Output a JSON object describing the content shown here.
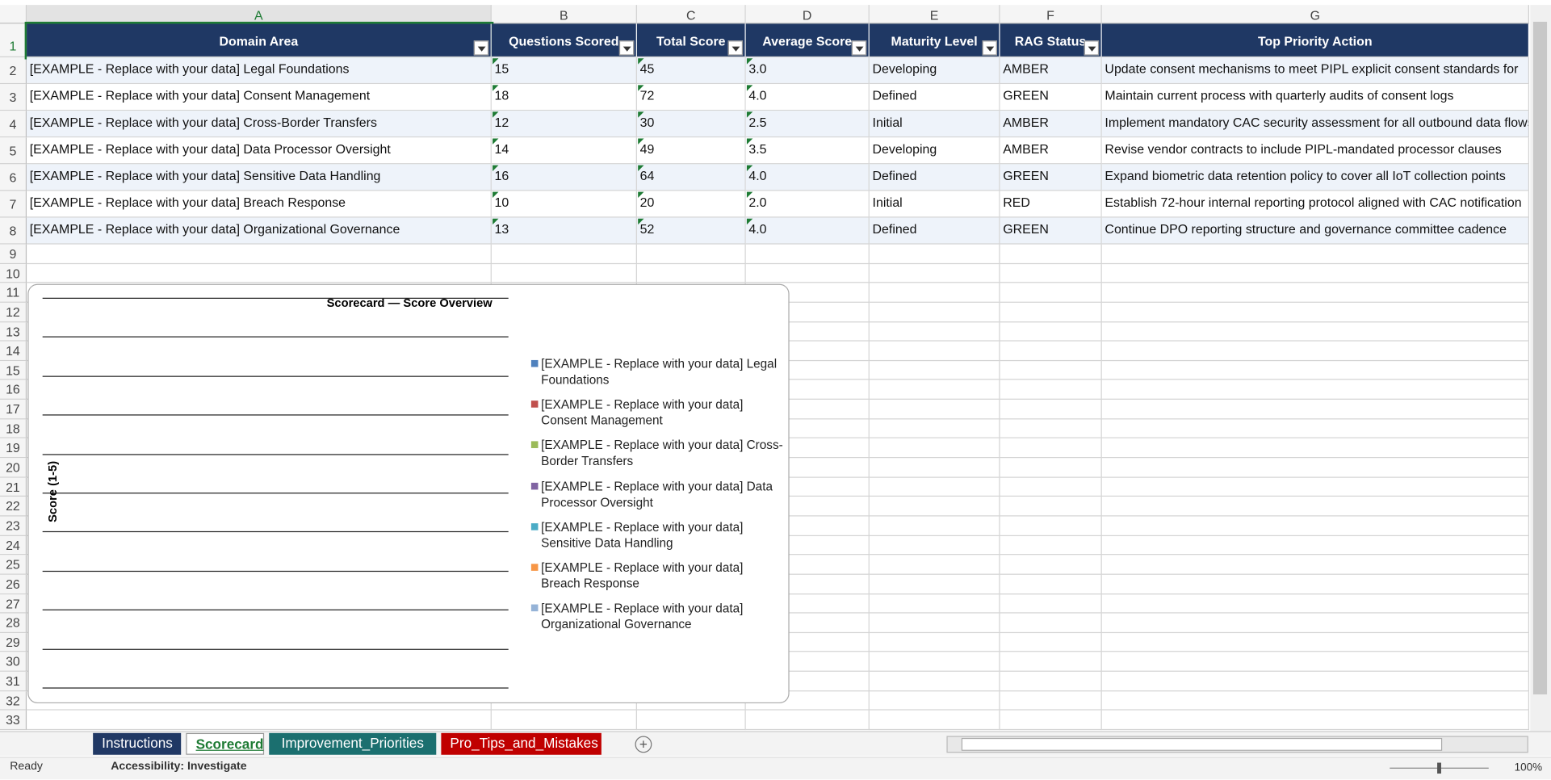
{
  "columns": [
    "A",
    "B",
    "C",
    "D",
    "E",
    "F",
    "G"
  ],
  "row_numbers": [
    1,
    2,
    3,
    4,
    5,
    6,
    7,
    8,
    9,
    10,
    11,
    12,
    13,
    14,
    15,
    16,
    17,
    18,
    19,
    20,
    21,
    22,
    23,
    24,
    25,
    26,
    27,
    28,
    29,
    30,
    31,
    32,
    33
  ],
  "table": {
    "header": [
      "Domain Area",
      "Questions Scored",
      "Total Score",
      "Average Score",
      "Maturity Level",
      "RAG Status",
      "Top Priority Action"
    ],
    "rows": [
      [
        "[EXAMPLE - Replace with your data] Legal Foundations",
        "15",
        "45",
        "3.0",
        "Developing",
        "AMBER",
        "Update consent mechanisms to meet PIPL explicit consent standards for"
      ],
      [
        "[EXAMPLE - Replace with your data] Consent Management",
        "18",
        "72",
        "4.0",
        "Defined",
        "GREEN",
        "Maintain current process with quarterly audits of consent logs"
      ],
      [
        "[EXAMPLE - Replace with your data] Cross-Border Transfers",
        "12",
        "30",
        "2.5",
        "Initial",
        "AMBER",
        "Implement mandatory CAC security assessment for all outbound data flows"
      ],
      [
        "[EXAMPLE - Replace with your data] Data Processor Oversight",
        "14",
        "49",
        "3.5",
        "Developing",
        "AMBER",
        "Revise vendor contracts to include PIPL-mandated processor clauses"
      ],
      [
        "[EXAMPLE - Replace with your data] Sensitive Data Handling",
        "16",
        "64",
        "4.0",
        "Defined",
        "GREEN",
        "Expand biometric data retention policy to cover all IoT collection points"
      ],
      [
        "[EXAMPLE - Replace with your data] Breach Response",
        "10",
        "20",
        "2.0",
        "Initial",
        "RED",
        "Establish 72-hour internal reporting protocol aligned with CAC notification"
      ],
      [
        "[EXAMPLE - Replace with your data] Organizational Governance",
        "13",
        "52",
        "4.0",
        "Defined",
        "GREEN",
        "Continue DPO reporting structure and governance committee cadence"
      ]
    ]
  },
  "chart": {
    "title": "Scorecard — Score Overview",
    "y_axis_label": "Score (1-5)",
    "legend": [
      {
        "name": "[EXAMPLE - Replace with your data] Legal Foundations",
        "color": "#4f81bd"
      },
      {
        "name": "[EXAMPLE - Replace with your data] Consent Management",
        "color": "#c0504d"
      },
      {
        "name": "[EXAMPLE - Replace with your data] Cross-Border Transfers",
        "color": "#9bbb59"
      },
      {
        "name": "[EXAMPLE - Replace with your data] Data Processor Oversight",
        "color": "#8064a2"
      },
      {
        "name": "[EXAMPLE - Replace with your data] Sensitive Data Handling",
        "color": "#4bacc6"
      },
      {
        "name": "[EXAMPLE - Replace with your data] Breach Response",
        "color": "#f79646"
      },
      {
        "name": "[EXAMPLE - Replace with your data] Organizational Governance",
        "color": "#95b3d7"
      }
    ]
  },
  "sheet_tabs": [
    {
      "name": "Instructions",
      "color": "#203864"
    },
    {
      "name": "Scorecard",
      "color": "#ffffff"
    },
    {
      "name": "Improvement_Priorities",
      "color": "#1b6f6f"
    },
    {
      "name": "Pro_Tips_and_Mistakes",
      "color": "#c00000"
    }
  ],
  "status_bar": {
    "mode": "Ready",
    "accessibility": "Accessibility: Investigate",
    "zoom": "100%"
  }
}
